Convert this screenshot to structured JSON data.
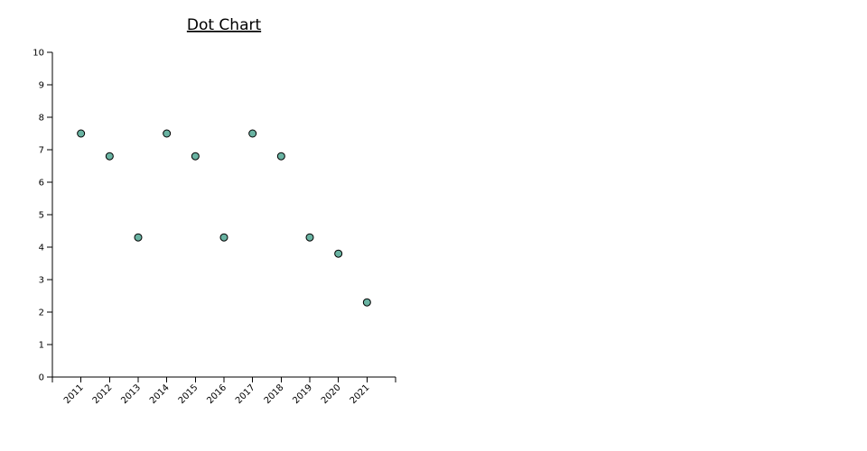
{
  "chart_data": {
    "type": "scatter",
    "title": "Dot Chart",
    "xlabel": "",
    "ylabel": "",
    "categories": [
      "2011",
      "2012",
      "2013",
      "2014",
      "2015",
      "2016",
      "2017",
      "2018",
      "2019",
      "2020",
      "2021"
    ],
    "values": [
      7.5,
      6.8,
      4.3,
      7.5,
      6.8,
      4.3,
      7.5,
      6.8,
      4.3,
      3.8,
      2.3
    ],
    "ylim": [
      0,
      10
    ],
    "yticks": [
      0,
      1,
      2,
      3,
      4,
      5,
      6,
      7,
      8,
      9,
      10
    ],
    "grid": false,
    "legend": "none",
    "point_fill": "#69b3a2",
    "point_stroke": "#000000"
  }
}
